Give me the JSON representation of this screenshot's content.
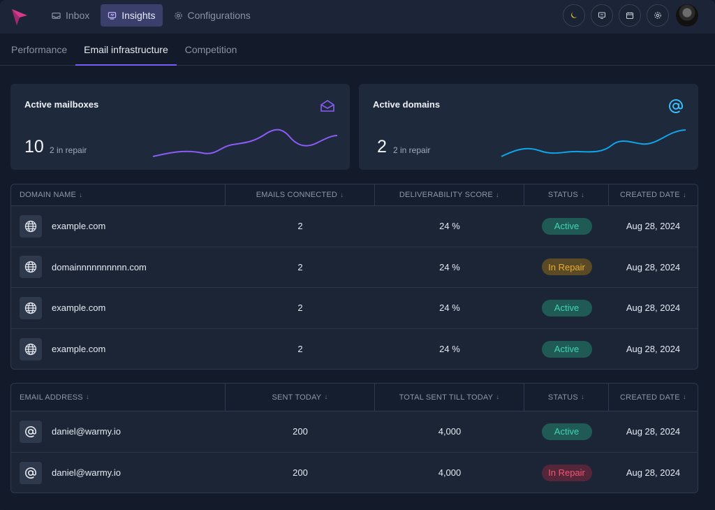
{
  "nav": {
    "tabs": [
      {
        "label": "Inbox",
        "icon": "inbox-icon"
      },
      {
        "label": "Insights",
        "icon": "insights-icon",
        "active": true
      },
      {
        "label": "Configurations",
        "icon": "gear-icon"
      }
    ],
    "tools": [
      "moon-icon",
      "monitor-icon",
      "calendar-icon",
      "settings-icon"
    ]
  },
  "subtabs": [
    {
      "label": "Performance"
    },
    {
      "label": "Email infrastructure",
      "active": true
    },
    {
      "label": "Competition"
    }
  ],
  "cards": {
    "mailboxes": {
      "title": "Active mailboxes",
      "value": "10",
      "sub": "2 in repair",
      "icon": "envelope-open-icon",
      "color": "#8b5cf6"
    },
    "domains": {
      "title": "Active domains",
      "value": "2",
      "sub": "2 in repair",
      "icon": "at-sign-icon",
      "color": "#38bdf8"
    }
  },
  "domains_table": {
    "headers": [
      "DOMAIN NAME",
      "EMAILS CONNECTED",
      "DELIVERABILITY SCORE",
      "STATUS",
      "CREATED DATE"
    ],
    "rows": [
      {
        "name": "example.com",
        "emails": "2",
        "score": "24 %",
        "status": "Active",
        "created": "Aug 28, 2024"
      },
      {
        "name": "domainnnnnnnnnn.com",
        "emails": "2",
        "score": "24 %",
        "status": "In Repair",
        "created": "Aug 28, 2024"
      },
      {
        "name": "example.com",
        "emails": "2",
        "score": "24 %",
        "status": "Active",
        "created": "Aug 28, 2024"
      },
      {
        "name": "example.com",
        "emails": "2",
        "score": "24 %",
        "status": "Active",
        "created": "Aug 28, 2024"
      }
    ]
  },
  "emails_table": {
    "headers": [
      "EMAIL ADDRESS",
      "SENT TODAY",
      "TOTAL SENT TILL TODAY",
      "STATUS",
      "CREATED DATE"
    ],
    "rows": [
      {
        "email": "daniel@warmy.io",
        "sent": "200",
        "total": "4,000",
        "status": "Active",
        "created": "Aug 28, 2024"
      },
      {
        "email": "daniel@warmy.io",
        "sent": "200",
        "total": "4,000",
        "status": "In Repair",
        "created": "Aug 28, 2024"
      }
    ]
  }
}
